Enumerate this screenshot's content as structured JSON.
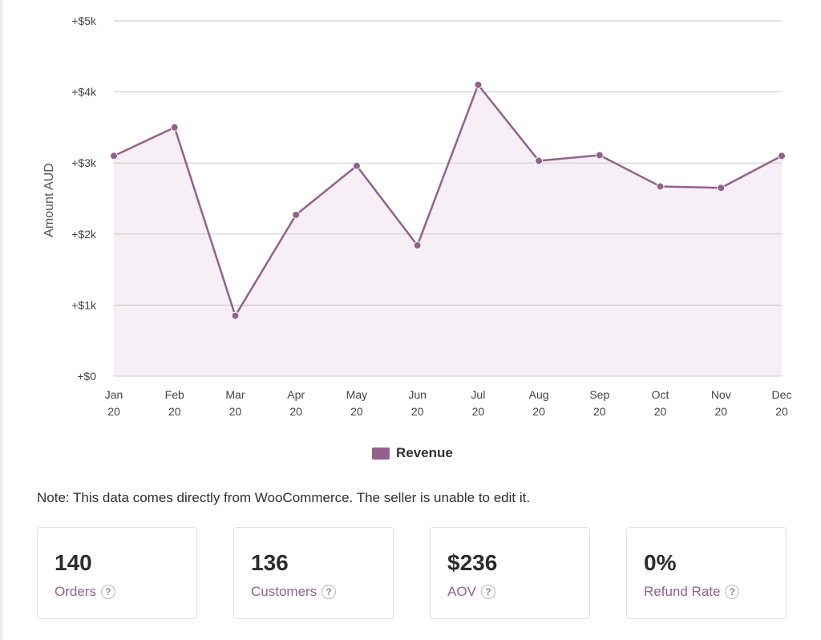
{
  "chart_data": {
    "type": "area",
    "ylabel": "Amount AUD",
    "ylim": [
      0,
      5000
    ],
    "yticks": [
      0,
      1000,
      2000,
      3000,
      4000,
      5000
    ],
    "ytick_labels": [
      "+$0",
      "+$1k",
      "+$2k",
      "+$3k",
      "+$4k",
      "+$5k"
    ],
    "categories": [
      [
        "Jan",
        "20"
      ],
      [
        "Feb",
        "20"
      ],
      [
        "Mar",
        "20"
      ],
      [
        "Apr",
        "20"
      ],
      [
        "May",
        "20"
      ],
      [
        "Jun",
        "20"
      ],
      [
        "Jul",
        "20"
      ],
      [
        "Aug",
        "20"
      ],
      [
        "Sep",
        "20"
      ],
      [
        "Oct",
        "20"
      ],
      [
        "Nov",
        "20"
      ],
      [
        "Dec",
        "20"
      ]
    ],
    "series": [
      {
        "name": "Revenue",
        "values": [
          3100,
          3500,
          850,
          2270,
          2960,
          1840,
          4100,
          3030,
          3110,
          2670,
          2650,
          3100
        ]
      }
    ],
    "grid": true,
    "legend": "bottom-center",
    "colors": {
      "line": "#93618c",
      "fill": "#f6eff5",
      "grid": "#c9c9c9",
      "baseline": "#d3cce6"
    }
  },
  "legend": {
    "label": "Revenue"
  },
  "note": "Note: This data comes directly from WooCommerce. The seller is unable to edit it.",
  "stats": [
    {
      "value": "140",
      "label": "Orders",
      "help": "?"
    },
    {
      "value": "136",
      "label": "Customers",
      "help": "?"
    },
    {
      "value": "$236",
      "label": "AOV",
      "help": "?"
    },
    {
      "value": "0%",
      "label": "Refund Rate",
      "help": "?"
    }
  ]
}
